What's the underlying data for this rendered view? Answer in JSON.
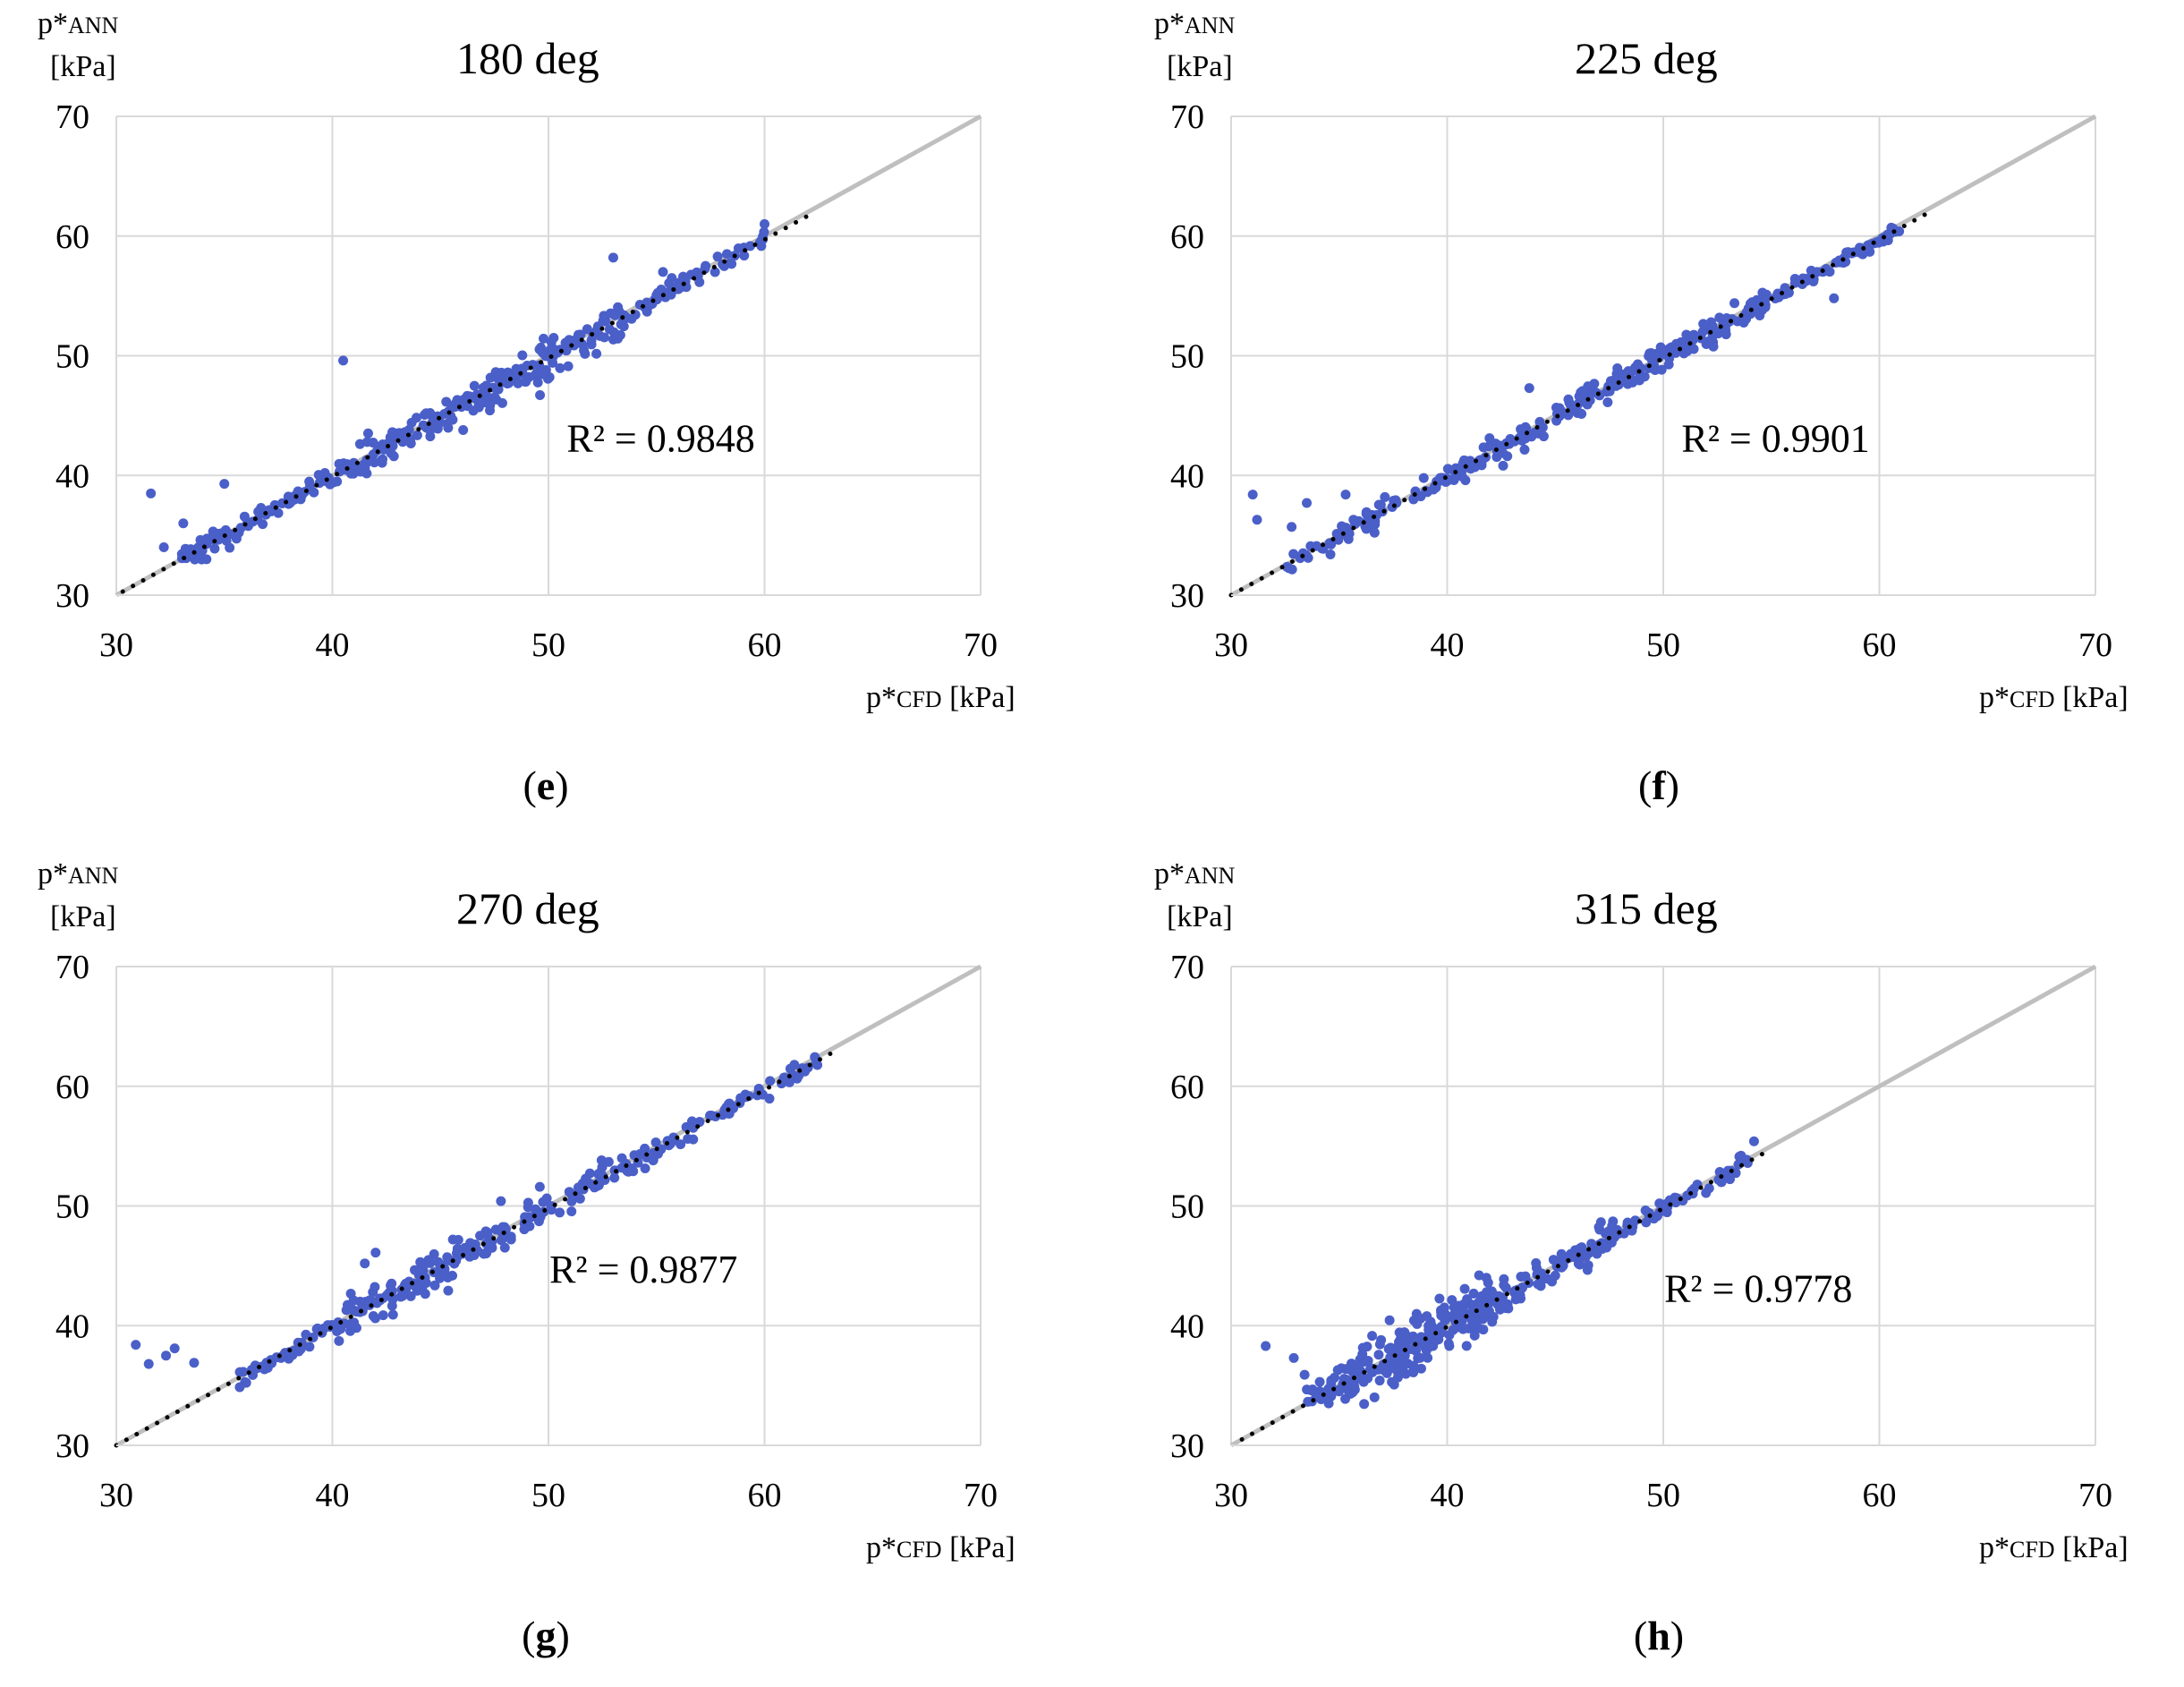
{
  "figure": {
    "axis_unit_y": "[kPa]",
    "y_label_main": "p*",
    "y_label_sub": "ANN",
    "x_label_main": "p*",
    "x_label_sub": "CFD",
    "x_label_unit": " [kPa]"
  },
  "colors": {
    "points": "#4a5fc8",
    "trend": "#000000",
    "diagonal": "#bfbfbf",
    "grid": "#d9d9d9"
  },
  "chart_data": [
    {
      "type": "scatter",
      "title": "180 deg",
      "caption_letter": "e",
      "r2": "R² = 0.9848",
      "xlim": [
        30,
        70
      ],
      "ylim": [
        30,
        70
      ],
      "xticks": [
        30,
        40,
        50,
        60,
        70
      ],
      "yticks": [
        30,
        40,
        50,
        60,
        70
      ],
      "xlabel": "p*CFD [kPa]",
      "ylabel": "p*ANN [kPa]",
      "trend": {
        "x1": 30.3,
        "x2": 62.0,
        "slope": 0.99,
        "intercept": 0.3
      },
      "outliers": [
        [
          31.6,
          38.5
        ],
        [
          40.5,
          49.6
        ],
        [
          35.0,
          39.3
        ],
        [
          32.2,
          34.0
        ],
        [
          33.1,
          36.0
        ],
        [
          53.0,
          58.2
        ],
        [
          60.0,
          61.0
        ],
        [
          55.3,
          57.0
        ]
      ],
      "clusters": [
        {
          "x1": 33.0,
          "x2": 41.0,
          "n": 90,
          "spread": 0.45
        },
        {
          "x1": 41.0,
          "x2": 47.0,
          "n": 90,
          "spread": 0.6
        },
        {
          "x1": 47.0,
          "x2": 53.5,
          "n": 110,
          "spread": 0.8
        },
        {
          "x1": 53.5,
          "x2": 60.0,
          "n": 60,
          "spread": 0.35
        }
      ]
    },
    {
      "type": "scatter",
      "title": "225 deg",
      "caption_letter": "f",
      "r2": "R² = 0.9901",
      "xlim": [
        30,
        70
      ],
      "ylim": [
        30,
        70
      ],
      "xticks": [
        30,
        40,
        50,
        60,
        70
      ],
      "yticks": [
        30,
        40,
        50,
        60,
        70
      ],
      "xlabel": "p*CFD [kPa]",
      "ylabel": "p*ANN [kPa]",
      "trend": {
        "x1": 30.0,
        "x2": 62.2,
        "slope": 0.99,
        "intercept": 0.3
      },
      "outliers": [
        [
          31.0,
          38.4
        ],
        [
          31.2,
          36.3
        ],
        [
          32.8,
          35.7
        ],
        [
          33.5,
          37.7
        ],
        [
          35.3,
          38.4
        ],
        [
          57.9,
          54.8
        ],
        [
          43.8,
          47.3
        ]
      ],
      "clusters": [
        {
          "x1": 32.5,
          "x2": 40.0,
          "n": 70,
          "spread": 0.45
        },
        {
          "x1": 40.0,
          "x2": 48.0,
          "n": 100,
          "spread": 0.6
        },
        {
          "x1": 48.0,
          "x2": 55.0,
          "n": 110,
          "spread": 0.6
        },
        {
          "x1": 55.0,
          "x2": 61.2,
          "n": 60,
          "spread": 0.35
        }
      ]
    },
    {
      "type": "scatter",
      "title": "270 deg",
      "caption_letter": "g",
      "r2": "R² = 0.9877",
      "xlim": [
        30,
        70
      ],
      "ylim": [
        30,
        70
      ],
      "xticks": [
        30,
        40,
        50,
        60,
        70
      ],
      "yticks": [
        30,
        40,
        50,
        60,
        70
      ],
      "xlabel": "p*CFD [kPa]",
      "ylabel": "p*ANN [kPa]",
      "trend": {
        "x1": 30.0,
        "x2": 63.5,
        "slope": 0.99,
        "intercept": 0.3
      },
      "outliers": [
        [
          30.9,
          38.4
        ],
        [
          31.5,
          36.8
        ],
        [
          32.3,
          37.5
        ],
        [
          32.7,
          38.1
        ],
        [
          33.6,
          36.9
        ],
        [
          41.5,
          45.2
        ],
        [
          42.0,
          46.1
        ],
        [
          47.8,
          50.4
        ],
        [
          49.6,
          51.6
        ]
      ],
      "clusters": [
        {
          "x1": 35.5,
          "x2": 40.0,
          "n": 45,
          "spread": 0.4
        },
        {
          "x1": 40.0,
          "x2": 46.0,
          "n": 110,
          "spread": 0.8
        },
        {
          "x1": 46.0,
          "x2": 55.0,
          "n": 100,
          "spread": 0.6
        },
        {
          "x1": 55.0,
          "x2": 62.5,
          "n": 60,
          "spread": 0.35
        }
      ]
    },
    {
      "type": "scatter",
      "title": "315 deg",
      "caption_letter": "h",
      "r2": "R² = 0.9778",
      "xlim": [
        30,
        70
      ],
      "ylim": [
        30,
        70
      ],
      "xticks": [
        30,
        40,
        50,
        60,
        70
      ],
      "yticks": [
        30,
        40,
        50,
        60,
        70
      ],
      "xlabel": "p*CFD [kPa]",
      "ylabel": "p*ANN [kPa]",
      "trend": {
        "x1": 30.5,
        "x2": 54.8,
        "slope": 0.99,
        "intercept": 0.3
      },
      "outliers": [
        [
          31.6,
          38.3
        ],
        [
          32.9,
          37.3
        ],
        [
          33.4,
          35.9
        ],
        [
          54.2,
          55.4
        ],
        [
          53.6,
          54.2
        ]
      ],
      "clusters": [
        {
          "x1": 33.5,
          "x2": 36.0,
          "n": 50,
          "spread": 0.7
        },
        {
          "x1": 36.0,
          "x2": 42.0,
          "n": 170,
          "spread": 1.2
        },
        {
          "x1": 42.0,
          "x2": 48.0,
          "n": 90,
          "spread": 0.7
        },
        {
          "x1": 48.0,
          "x2": 54.0,
          "n": 50,
          "spread": 0.4
        }
      ]
    }
  ]
}
